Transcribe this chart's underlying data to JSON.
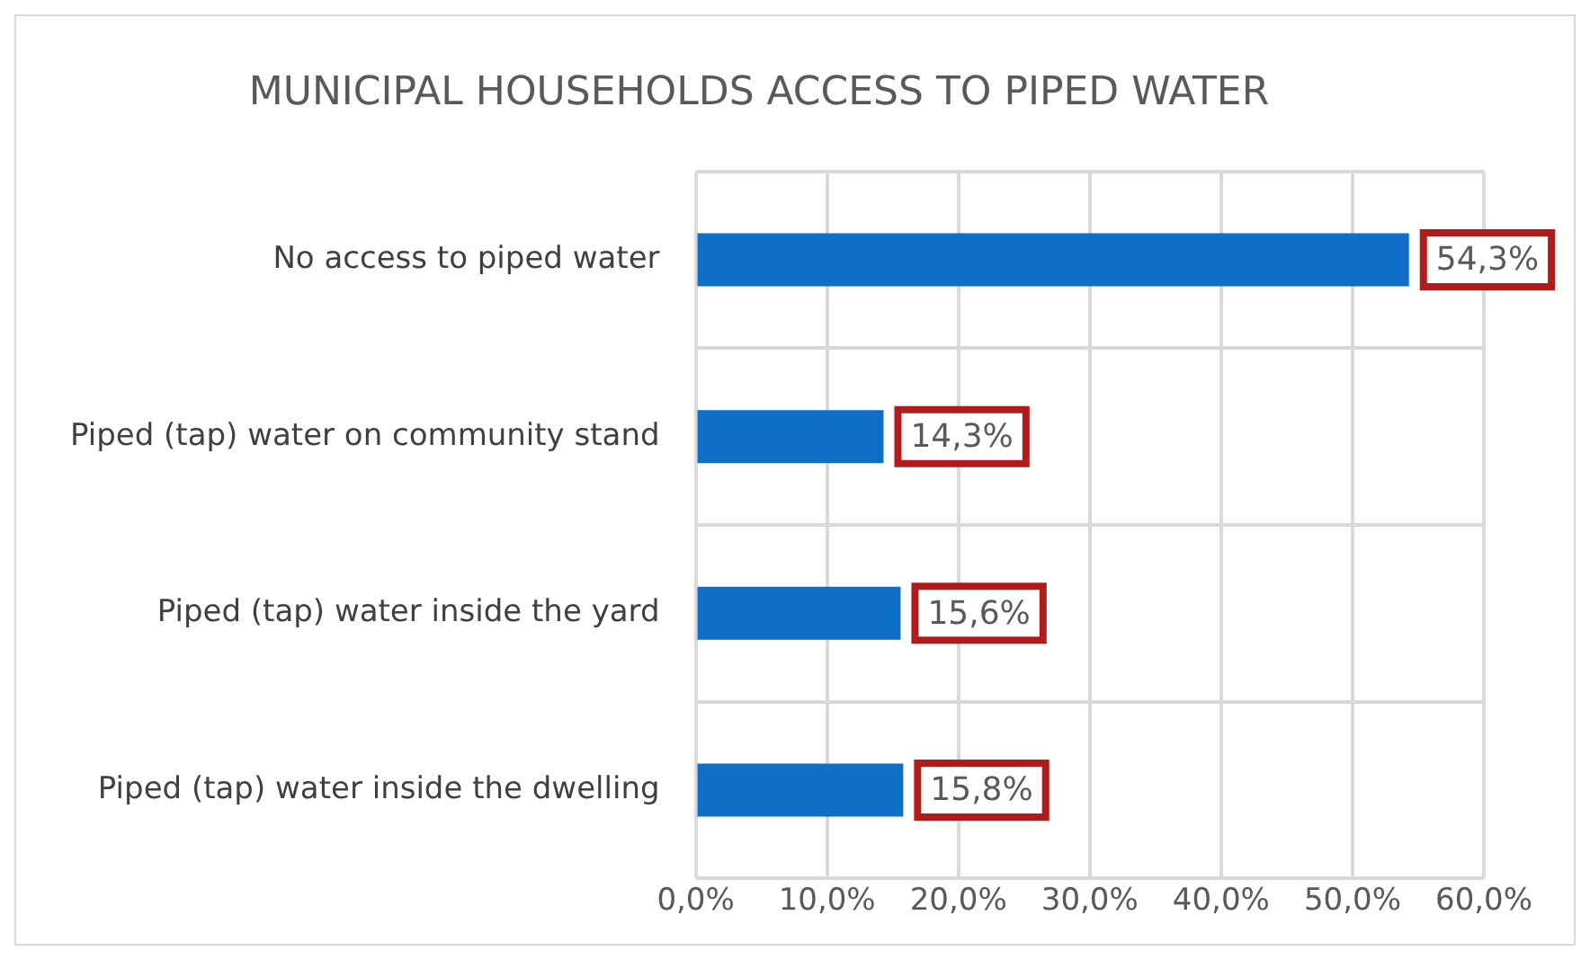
{
  "chart_data": {
    "type": "bar",
    "orientation": "horizontal",
    "title": "MUNICIPAL HOUSEHOLDS ACCESS TO PIPED WATER",
    "categories": [
      "No access to piped water",
      "Piped (tap) water on community stand",
      "Piped (tap) water inside the yard",
      "Piped (tap) water inside the dwelling"
    ],
    "values": [
      54.3,
      14.3,
      15.6,
      15.8
    ],
    "value_labels": [
      "54,3%",
      "14,3%",
      "15,6%",
      "15,8%"
    ],
    "color": "#0f6fc6",
    "xlim": [
      0,
      60
    ],
    "xticks": [
      {
        "value": 0,
        "label": "0,0%"
      },
      {
        "value": 10,
        "label": "10,0%"
      },
      {
        "value": 20,
        "label": "20,0%"
      },
      {
        "value": 30,
        "label": "30,0%"
      },
      {
        "value": 40,
        "label": "40,0%"
      },
      {
        "value": 50,
        "label": "50,0%"
      },
      {
        "value": 60,
        "label": "60,0%"
      }
    ],
    "grid": true,
    "legend": false
  }
}
